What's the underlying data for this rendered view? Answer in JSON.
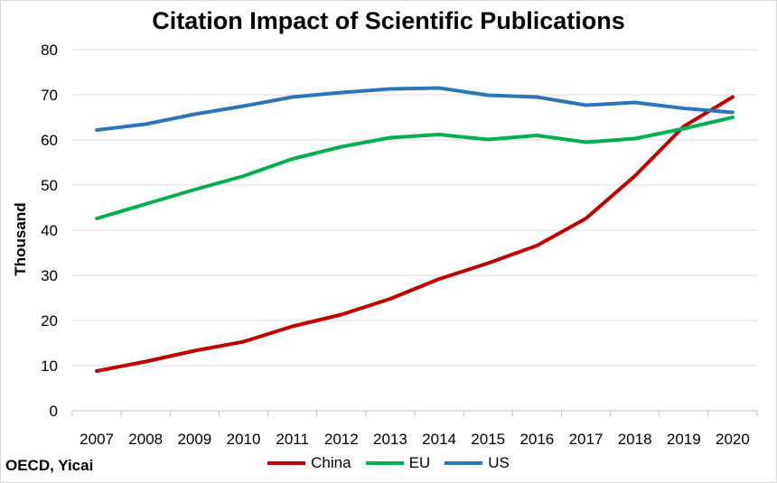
{
  "chart_data": {
    "type": "line",
    "title": "Citation Impact of Scientific Publications",
    "xlabel": "",
    "ylabel": "Thousand",
    "source_note": "OECD, Yicai",
    "x": [
      "2007",
      "2008",
      "2009",
      "2010",
      "2011",
      "2012",
      "2013",
      "2014",
      "2015",
      "2016",
      "2017",
      "2018",
      "2019",
      "2020"
    ],
    "ylim": [
      0,
      80
    ],
    "yticks": [
      "0",
      "10",
      "20",
      "30",
      "40",
      "50",
      "60",
      "70",
      "80"
    ],
    "grid": true,
    "legend": "bottom",
    "series": [
      {
        "name": "China",
        "color": "#c00000",
        "values": [
          8.8,
          10.9,
          13.3,
          15.3,
          18.7,
          21.3,
          24.8,
          29.2,
          32.7,
          36.6,
          42.6,
          52.0,
          63.0,
          69.5
        ]
      },
      {
        "name": "EU",
        "color": "#00b050",
        "values": [
          42.6,
          45.8,
          49.0,
          52.0,
          55.8,
          58.5,
          60.5,
          61.2,
          60.1,
          61.0,
          59.5,
          60.3,
          62.5,
          65.0
        ]
      },
      {
        "name": "US",
        "color": "#2e75b6",
        "values": [
          62.2,
          63.5,
          65.7,
          67.5,
          69.5,
          70.5,
          71.3,
          71.5,
          69.9,
          69.5,
          67.7,
          68.3,
          67.0,
          66.1
        ]
      }
    ]
  }
}
